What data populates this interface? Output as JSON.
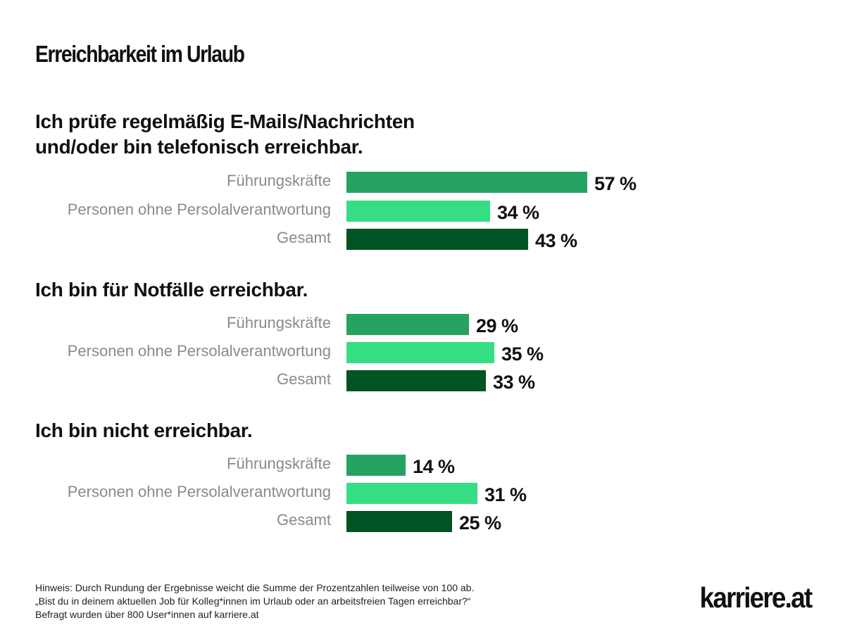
{
  "title": "Erreichbarkeit im Urlaub",
  "colors": {
    "fuehrungskraefte": "#26a263",
    "ohne_personal": "#35dd83",
    "gesamt": "#005322"
  },
  "chart_data": {
    "type": "bar",
    "orientation": "horizontal",
    "title": "Erreichbarkeit im Urlaub",
    "unit": "%",
    "categories": [
      "Führungskräfte",
      "Personen ohne Persolalverantwortung",
      "Gesamt"
    ],
    "groups": [
      {
        "title_lines": [
          "Ich prüfe regelmäßig E-Mails/Nachrichten",
          "und/oder bin telefonisch erreichbar."
        ],
        "rows": [
          {
            "label": "Führungskräfte",
            "value": 57,
            "display": "57 %",
            "color_key": "fuehrungskraefte"
          },
          {
            "label": "Personen ohne Persolalverantwortung",
            "value": 34,
            "display": "34 %",
            "color_key": "ohne_personal"
          },
          {
            "label": "Gesamt",
            "value": 43,
            "display": "43 %",
            "color_key": "gesamt"
          }
        ]
      },
      {
        "title_lines": [
          "Ich bin für Notfälle erreichbar."
        ],
        "rows": [
          {
            "label": "Führungskräfte",
            "value": 29,
            "display": "29 %",
            "color_key": "fuehrungskraefte"
          },
          {
            "label": "Personen ohne Persolalverantwortung",
            "value": 35,
            "display": "35 %",
            "color_key": "ohne_personal"
          },
          {
            "label": "Gesamt",
            "value": 33,
            "display": "33 %",
            "color_key": "gesamt"
          }
        ]
      },
      {
        "title_lines": [
          "Ich bin nicht erreichbar."
        ],
        "rows": [
          {
            "label": "Führungskräfte",
            "value": 14,
            "display": "14 %",
            "color_key": "fuehrungskraefte"
          },
          {
            "label": "Personen ohne Persolalverantwortung",
            "value": 31,
            "display": "31 %",
            "color_key": "ohne_personal"
          },
          {
            "label": "Gesamt",
            "value": 25,
            "display": "25 %",
            "color_key": "gesamt"
          }
        ]
      }
    ],
    "xlim": [
      0,
      100
    ],
    "grid": false,
    "legend": "none"
  },
  "footnote": {
    "line1": "Hinweis: Durch Rundung der Ergebnisse weicht die Summe der Prozentzahlen teilweise von 100 ab.",
    "line2": "„Bist du in deinem aktuellen Job für Kolleg*innen im Urlaub oder an arbeitsfreien Tagen erreichbar?“",
    "line3": "Befragt wurden über 800 User*innen auf karriere.at"
  },
  "logo": "karriere.at"
}
